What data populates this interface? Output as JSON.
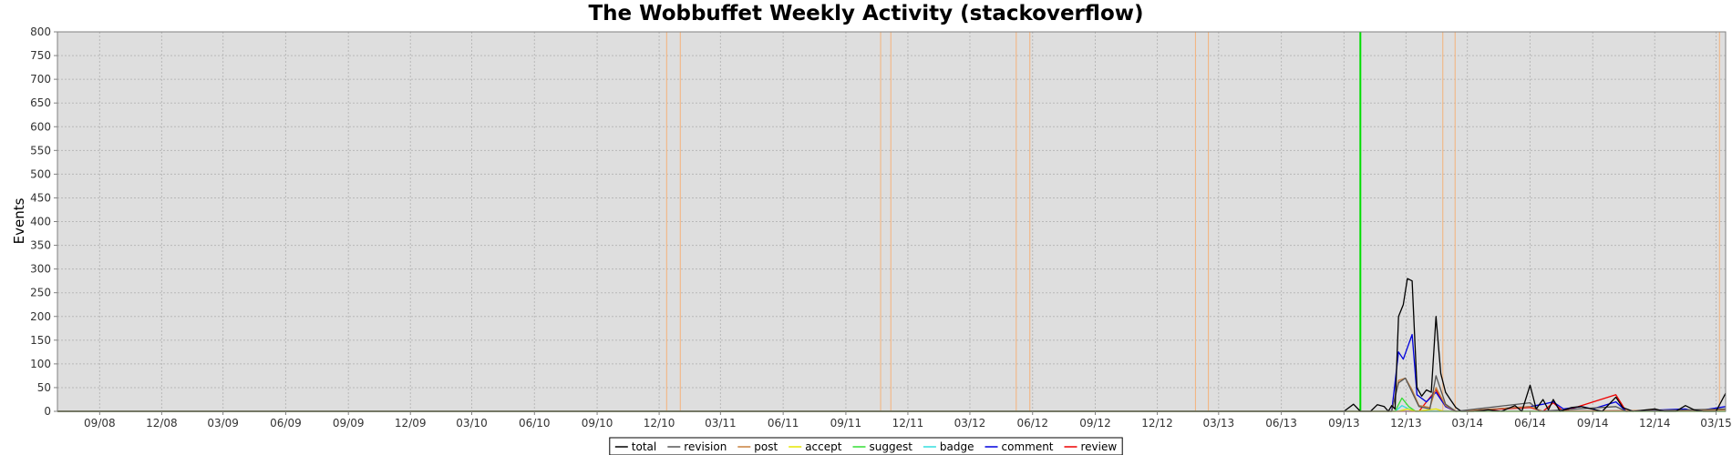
{
  "chart_data": {
    "type": "line",
    "title": "The Wobbuffet Weekly Activity (stackoverflow)",
    "xlabel": "",
    "ylabel": "Events",
    "ylim": [
      0,
      800
    ],
    "yticks": [
      0,
      50,
      100,
      150,
      200,
      250,
      300,
      350,
      400,
      450,
      500,
      550,
      600,
      650,
      700,
      750,
      800
    ],
    "xlim": [
      "2008-07-01",
      "2015-03-15"
    ],
    "xticks": [
      {
        "date": "2008-09-01",
        "label": "09/08"
      },
      {
        "date": "2008-12-01",
        "label": "12/08"
      },
      {
        "date": "2009-03-01",
        "label": "03/09"
      },
      {
        "date": "2009-06-01",
        "label": "06/09"
      },
      {
        "date": "2009-09-01",
        "label": "09/09"
      },
      {
        "date": "2009-12-01",
        "label": "12/09"
      },
      {
        "date": "2010-03-01",
        "label": "03/10"
      },
      {
        "date": "2010-06-01",
        "label": "06/10"
      },
      {
        "date": "2010-09-01",
        "label": "09/10"
      },
      {
        "date": "2010-12-01",
        "label": "12/10"
      },
      {
        "date": "2011-03-01",
        "label": "03/11"
      },
      {
        "date": "2011-06-01",
        "label": "06/11"
      },
      {
        "date": "2011-09-01",
        "label": "09/11"
      },
      {
        "date": "2011-12-01",
        "label": "12/11"
      },
      {
        "date": "2012-03-01",
        "label": "03/12"
      },
      {
        "date": "2012-06-01",
        "label": "06/12"
      },
      {
        "date": "2012-09-01",
        "label": "09/12"
      },
      {
        "date": "2012-12-01",
        "label": "12/12"
      },
      {
        "date": "2013-03-01",
        "label": "03/13"
      },
      {
        "date": "2013-06-01",
        "label": "06/13"
      },
      {
        "date": "2013-09-01",
        "label": "09/13"
      },
      {
        "date": "2013-12-01",
        "label": "12/13"
      },
      {
        "date": "2014-03-01",
        "label": "03/14"
      },
      {
        "date": "2014-06-01",
        "label": "06/14"
      },
      {
        "date": "2014-09-01",
        "label": "09/14"
      },
      {
        "date": "2014-12-01",
        "label": "12/14"
      },
      {
        "date": "2015-03-01",
        "label": "03/15"
      }
    ],
    "grid": true,
    "legend": "bottom",
    "colors": {
      "plot_bg": "#dedede",
      "grid": "#b8b8b8",
      "marker_orange": "#f5b27a",
      "marker_green": "#00dd00"
    },
    "vertical_markers": [
      {
        "date": "2010-12-12",
        "color": "orange"
      },
      {
        "date": "2011-01-01",
        "color": "orange"
      },
      {
        "date": "2011-10-22",
        "color": "orange"
      },
      {
        "date": "2011-11-06",
        "color": "orange"
      },
      {
        "date": "2012-05-08",
        "color": "orange"
      },
      {
        "date": "2012-05-28",
        "color": "orange"
      },
      {
        "date": "2013-01-26",
        "color": "orange"
      },
      {
        "date": "2013-02-14",
        "color": "orange"
      },
      {
        "date": "2013-09-25",
        "color": "green"
      },
      {
        "date": "2014-01-24",
        "color": "orange"
      },
      {
        "date": "2014-02-11",
        "color": "orange"
      },
      {
        "date": "2015-03-06",
        "color": "orange"
      }
    ],
    "series": [
      {
        "name": "total",
        "color": "#000000",
        "points": [
          [
            "2008-07-01",
            0
          ],
          [
            "2013-09-01",
            0
          ],
          [
            "2013-09-15",
            15
          ],
          [
            "2013-09-25",
            0
          ],
          [
            "2013-10-10",
            0
          ],
          [
            "2013-10-20",
            14
          ],
          [
            "2013-10-30",
            10
          ],
          [
            "2013-11-05",
            0
          ],
          [
            "2013-11-10",
            12
          ],
          [
            "2013-11-15",
            5
          ],
          [
            "2013-11-20",
            200
          ],
          [
            "2013-11-27",
            225
          ],
          [
            "2013-12-03",
            280
          ],
          [
            "2013-12-10",
            275
          ],
          [
            "2013-12-17",
            50
          ],
          [
            "2013-12-24",
            32
          ],
          [
            "2013-12-31",
            45
          ],
          [
            "2014-01-07",
            40
          ],
          [
            "2014-01-14",
            200
          ],
          [
            "2014-01-21",
            80
          ],
          [
            "2014-01-28",
            40
          ],
          [
            "2014-02-04",
            25
          ],
          [
            "2014-02-12",
            8
          ],
          [
            "2014-02-20",
            0
          ],
          [
            "2014-03-10",
            0
          ],
          [
            "2014-04-01",
            3
          ],
          [
            "2014-04-20",
            0
          ],
          [
            "2014-05-10",
            12
          ],
          [
            "2014-05-20",
            0
          ],
          [
            "2014-06-01",
            55
          ],
          [
            "2014-06-10",
            5
          ],
          [
            "2014-06-20",
            25
          ],
          [
            "2014-06-28",
            3
          ],
          [
            "2014-07-05",
            25
          ],
          [
            "2014-07-15",
            0
          ],
          [
            "2014-08-01",
            8
          ],
          [
            "2014-08-15",
            10
          ],
          [
            "2014-08-30",
            5
          ],
          [
            "2014-09-15",
            0
          ],
          [
            "2014-10-05",
            30
          ],
          [
            "2014-10-15",
            8
          ],
          [
            "2014-10-30",
            0
          ],
          [
            "2014-12-01",
            5
          ],
          [
            "2014-12-15",
            0
          ],
          [
            "2015-01-01",
            0
          ],
          [
            "2015-01-15",
            12
          ],
          [
            "2015-01-28",
            3
          ],
          [
            "2015-02-10",
            0
          ],
          [
            "2015-03-01",
            0
          ],
          [
            "2015-03-15",
            38
          ]
        ]
      },
      {
        "name": "revision",
        "color": "#555555",
        "points": [
          [
            "2008-07-01",
            0
          ],
          [
            "2013-11-10",
            0
          ],
          [
            "2013-11-20",
            60
          ],
          [
            "2013-11-30",
            70
          ],
          [
            "2013-12-10",
            40
          ],
          [
            "2013-12-20",
            10
          ],
          [
            "2014-01-05",
            5
          ],
          [
            "2014-01-14",
            75
          ],
          [
            "2014-01-28",
            15
          ],
          [
            "2014-02-12",
            0
          ],
          [
            "2014-06-01",
            18
          ],
          [
            "2014-06-15",
            0
          ],
          [
            "2014-10-05",
            10
          ],
          [
            "2014-10-20",
            0
          ],
          [
            "2015-03-15",
            5
          ]
        ]
      },
      {
        "name": "post",
        "color": "#c8803c",
        "points": [
          [
            "2008-07-01",
            0
          ],
          [
            "2013-11-10",
            0
          ],
          [
            "2013-11-20",
            65
          ],
          [
            "2013-11-30",
            70
          ],
          [
            "2013-12-10",
            45
          ],
          [
            "2013-12-20",
            12
          ],
          [
            "2014-01-05",
            8
          ],
          [
            "2014-01-14",
            50
          ],
          [
            "2014-01-28",
            12
          ],
          [
            "2014-02-12",
            0
          ],
          [
            "2014-06-01",
            10
          ],
          [
            "2014-06-20",
            0
          ],
          [
            "2015-03-15",
            3
          ]
        ]
      },
      {
        "name": "accept",
        "color": "#e6e600",
        "points": [
          [
            "2008-07-01",
            0
          ],
          [
            "2013-11-20",
            0
          ],
          [
            "2013-12-03",
            5
          ],
          [
            "2013-12-15",
            0
          ],
          [
            "2014-01-14",
            5
          ],
          [
            "2014-01-25",
            0
          ],
          [
            "2015-03-15",
            0
          ]
        ]
      },
      {
        "name": "suggest",
        "color": "#33dd33",
        "points": [
          [
            "2008-07-01",
            0
          ],
          [
            "2013-11-15",
            0
          ],
          [
            "2013-11-25",
            28
          ],
          [
            "2013-12-05",
            10
          ],
          [
            "2013-12-15",
            0
          ],
          [
            "2015-03-15",
            0
          ]
        ]
      },
      {
        "name": "badge",
        "color": "#33dddd",
        "points": [
          [
            "2008-07-01",
            0
          ],
          [
            "2013-11-15",
            0
          ],
          [
            "2013-11-25",
            12
          ],
          [
            "2013-12-05",
            5
          ],
          [
            "2013-12-15",
            0
          ],
          [
            "2015-03-15",
            0
          ]
        ]
      },
      {
        "name": "comment",
        "color": "#0000dd",
        "points": [
          [
            "2008-07-01",
            0
          ],
          [
            "2013-11-10",
            0
          ],
          [
            "2013-11-20",
            125
          ],
          [
            "2013-11-27",
            110
          ],
          [
            "2013-12-10",
            162
          ],
          [
            "2013-12-17",
            35
          ],
          [
            "2013-12-31",
            20
          ],
          [
            "2014-01-14",
            40
          ],
          [
            "2014-01-28",
            10
          ],
          [
            "2014-02-12",
            0
          ],
          [
            "2014-06-01",
            10
          ],
          [
            "2014-06-20",
            15
          ],
          [
            "2014-07-05",
            20
          ],
          [
            "2014-07-20",
            5
          ],
          [
            "2014-08-15",
            10
          ],
          [
            "2014-09-01",
            5
          ],
          [
            "2014-10-05",
            20
          ],
          [
            "2014-10-20",
            0
          ],
          [
            "2015-01-15",
            5
          ],
          [
            "2015-01-28",
            0
          ],
          [
            "2015-03-15",
            10
          ]
        ]
      },
      {
        "name": "review",
        "color": "#ee0000",
        "points": [
          [
            "2008-07-01",
            0
          ],
          [
            "2013-12-20",
            0
          ],
          [
            "2014-01-14",
            45
          ],
          [
            "2014-01-28",
            10
          ],
          [
            "2014-02-12",
            0
          ],
          [
            "2014-06-01",
            8
          ],
          [
            "2014-06-20",
            0
          ],
          [
            "2014-07-05",
            18
          ],
          [
            "2014-07-20",
            0
          ],
          [
            "2014-10-05",
            35
          ],
          [
            "2014-10-20",
            0
          ],
          [
            "2015-03-15",
            3
          ]
        ]
      }
    ]
  }
}
